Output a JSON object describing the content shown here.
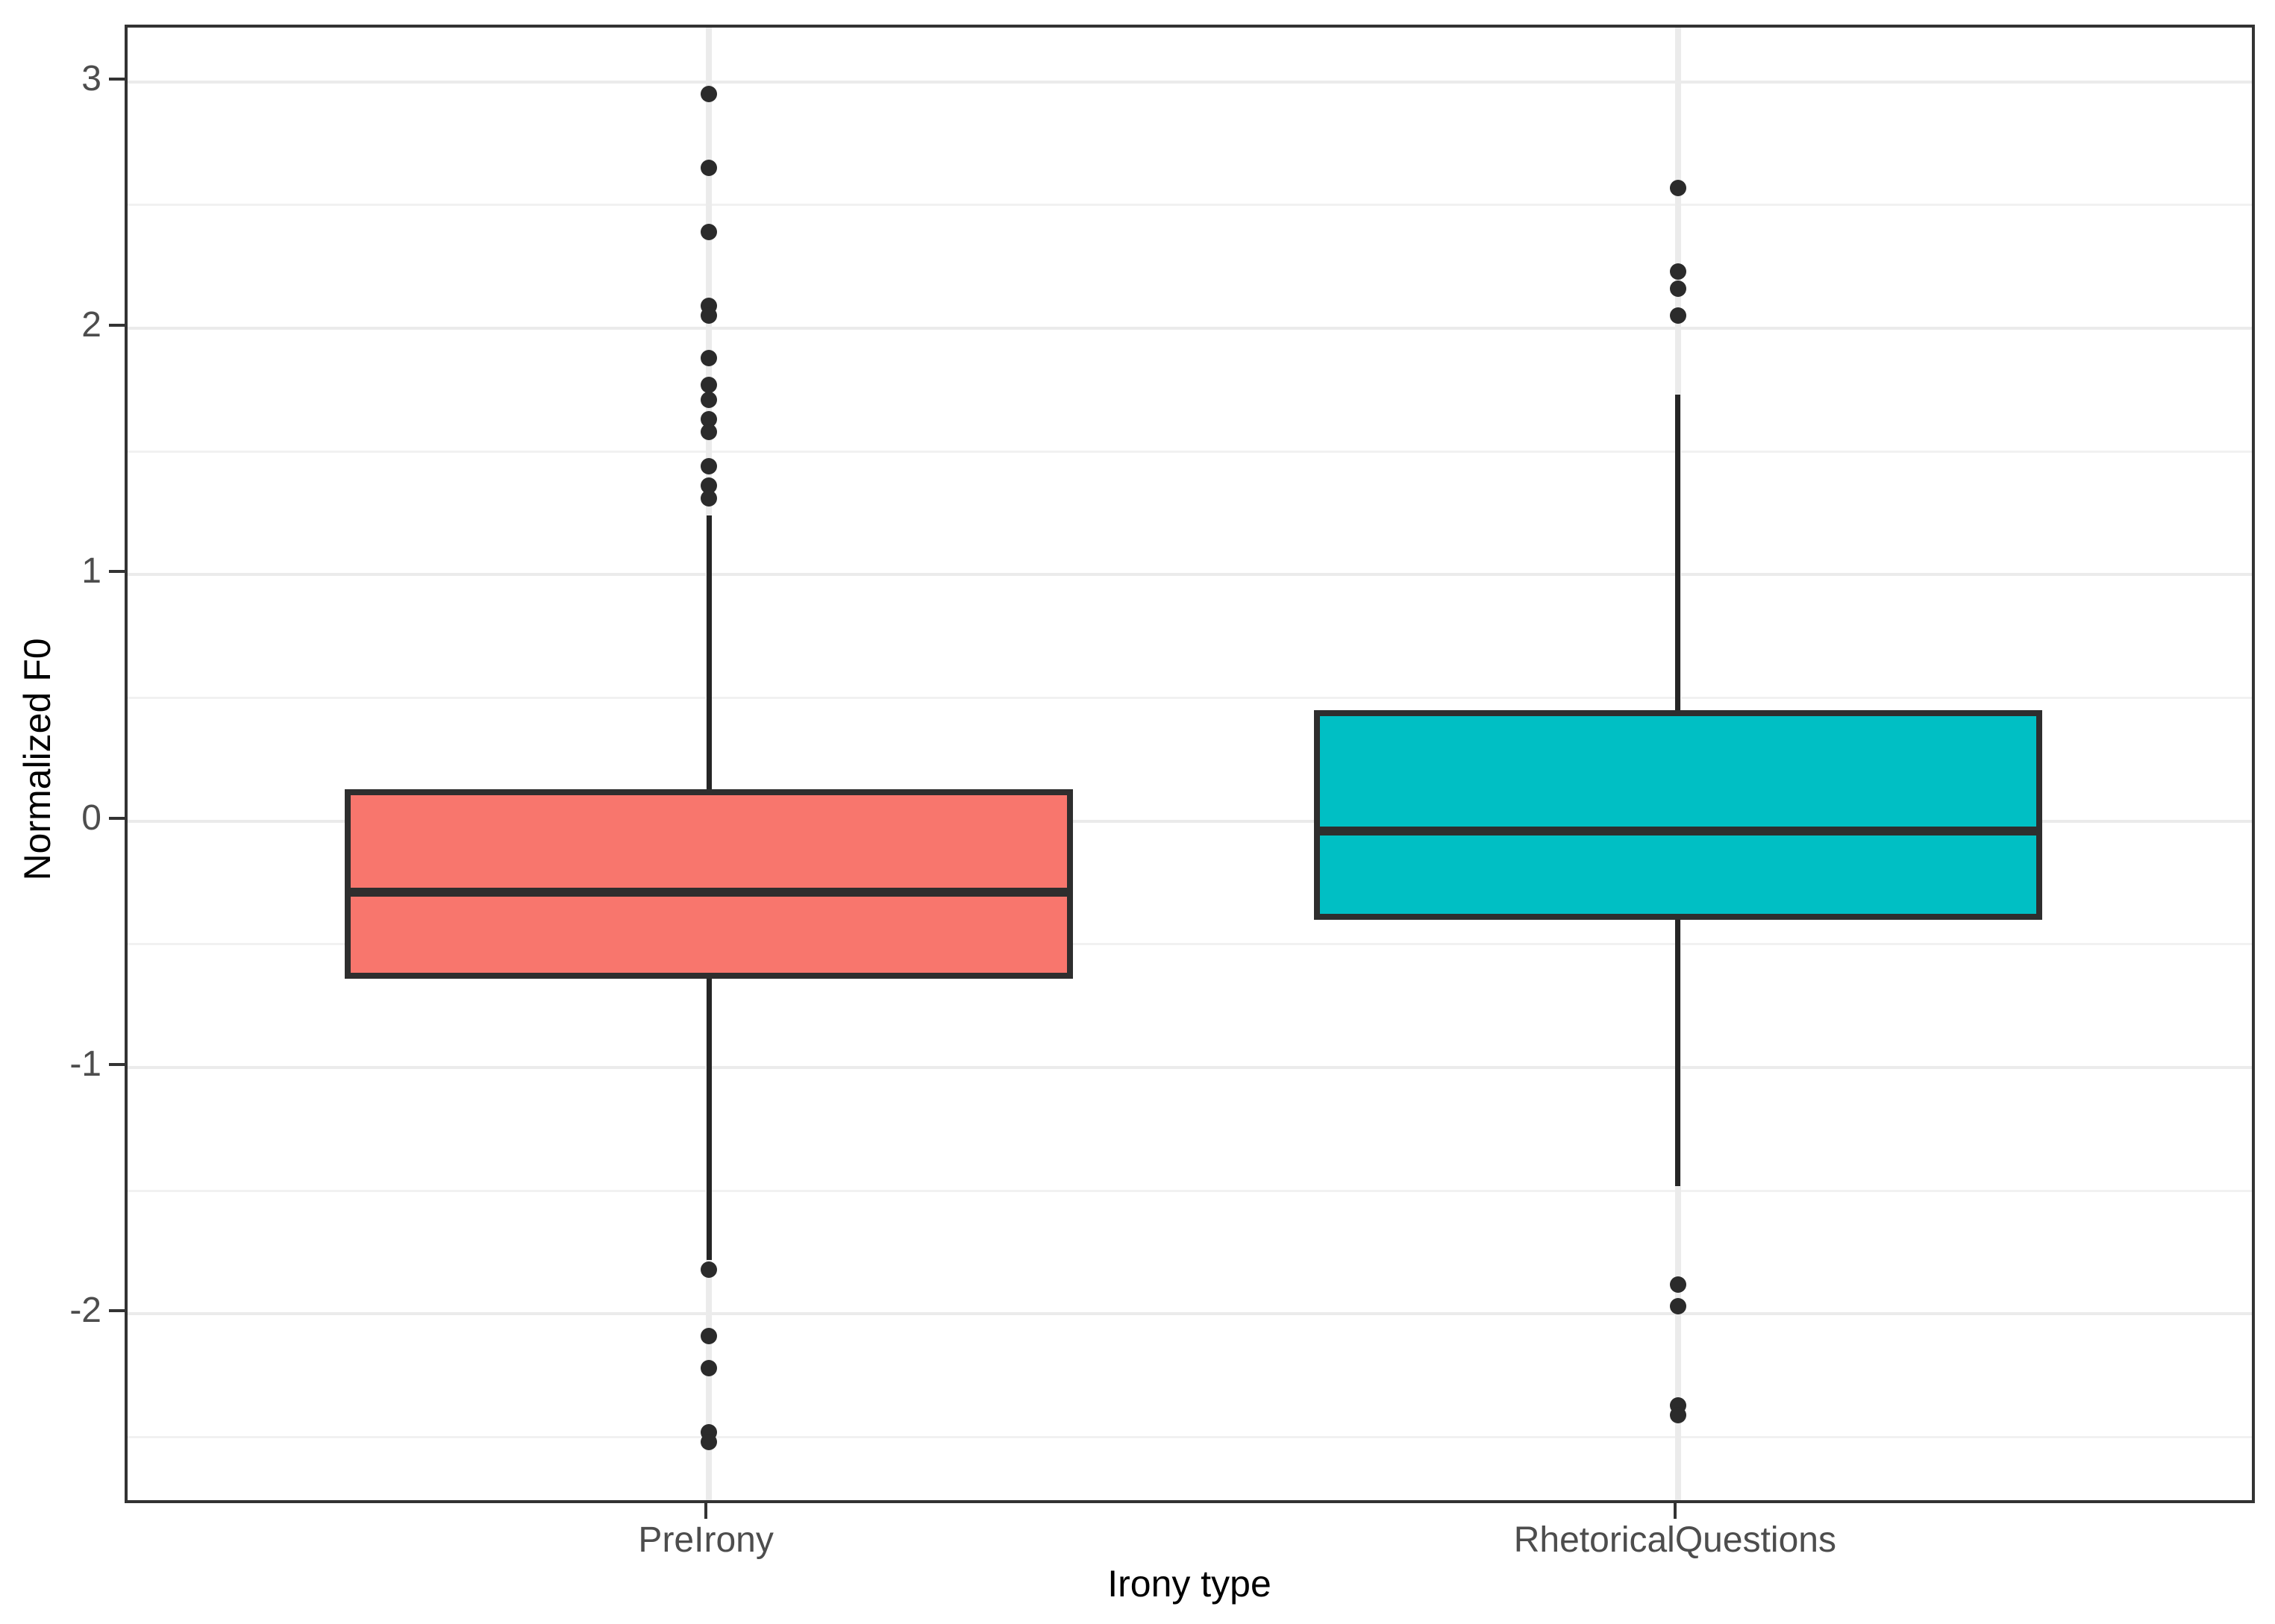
{
  "chart_data": {
    "type": "boxplot",
    "title": "",
    "xlabel": "Irony type",
    "ylabel": "Normalized F0",
    "categories": [
      "PreIrony",
      "RhetoricalQuestions"
    ],
    "y_axis": {
      "tick_values": [
        3,
        2,
        1,
        0,
        -1,
        -2
      ],
      "tick_labels": [
        "3",
        "2",
        "1",
        "0",
        "-1",
        "-2"
      ],
      "minor_tick_values": [
        2.5,
        1.5,
        0.5,
        -0.5,
        -1.5,
        -2.5
      ],
      "range": [
        -2.78,
        3.22
      ],
      "grid": true
    },
    "series": [
      {
        "name": "PreIrony",
        "fill": "#F8766D",
        "q1": -0.64,
        "median": -0.29,
        "q3": 0.13,
        "whisker_low": -1.78,
        "whisker_high": 1.24,
        "outliers": [
          2.95,
          2.65,
          2.39,
          2.09,
          2.05,
          1.88,
          1.77,
          1.71,
          1.63,
          1.58,
          1.44,
          1.36,
          1.31,
          -1.82,
          -2.09,
          -2.22,
          -2.48,
          -2.52
        ]
      },
      {
        "name": "RhetoricalQuestions",
        "fill": "#00BFC4",
        "q1": -0.4,
        "median": -0.04,
        "q3": 0.45,
        "whisker_low": -1.48,
        "whisker_high": 1.73,
        "outliers": [
          2.57,
          2.23,
          2.16,
          2.05,
          -1.88,
          -1.97,
          -2.37,
          -2.41
        ]
      }
    ],
    "colors": {
      "box_outline": "#2e2e2e",
      "outlier_dot": "#2b2b2b",
      "grid_major": "#EBEBEB",
      "grid_minor": "#F1F1F1",
      "panel_border": "#333333",
      "tick_text": "#4d4d4d",
      "axis_title_text": "#000000",
      "background": "#ffffff"
    },
    "legend": "none"
  }
}
